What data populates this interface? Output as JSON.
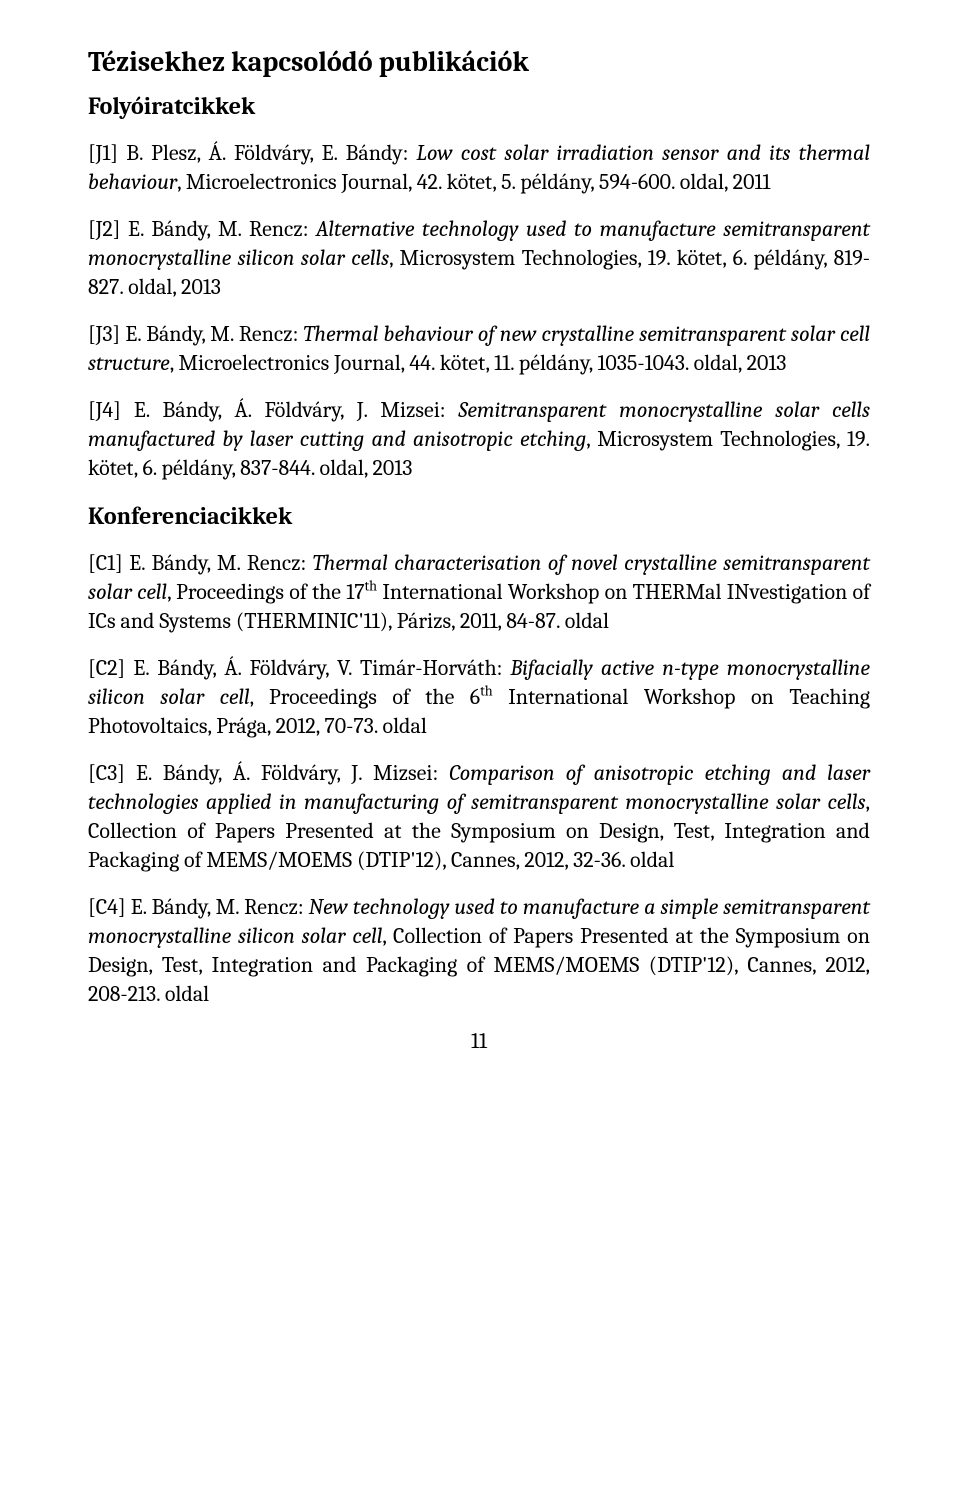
{
  "title": "Tézisekhez kapcsolódó publikációk",
  "section_journal_title": "Folyóiratcikkek",
  "section_conference_title": "Konferenciacikkek",
  "page_number": "11",
  "j1": {
    "pre": "[J1] B. Plesz, Á. Földváry, E. Bándy: ",
    "italic": "Low cost solar irradiation sensor and its thermal behaviour",
    "post": ", Microelectronics Journal, 42. kötet, 5. példány, 594-600. oldal, 2011"
  },
  "j2": {
    "pre": "[J2] E. Bándy, M. Rencz: ",
    "italic": "Alternative technology used to manufacture semitransparent monocrystalline silicon solar cells",
    "post": ", Microsystem Technologies, 19. kötet, 6. példány, 819-827. oldal, 2013"
  },
  "j3": {
    "pre": "[J3] E. Bándy, M. Rencz: ",
    "italic": "Thermal behaviour of new crystalline semitransparent solar cell structure",
    "post": ", Microelectronics Journal, 44. kötet, 11. példány, 1035-1043. oldal, 2013"
  },
  "j4": {
    "pre": "[J4] E. Bándy, Á. Földváry, J. Mizsei: ",
    "italic": "Semitransparent monocrystalline solar cells manufactured by laser cutting and anisotropic etching",
    "post": ", Microsystem Technologies, 19. kötet, 6. példány, 837-844. oldal, 2013"
  },
  "c1": {
    "pre": "[C1] E. Bándy, M. Rencz: ",
    "italic": "Thermal characterisation of novel crystalline semitransparent solar cell",
    "post1": ", Proceedings of the 17",
    "sup1": "th",
    "post2": " International Workshop on THERMal INvestigation of ICs and Systems (THERMINIC'11), Párizs, 2011, 84-87. oldal"
  },
  "c2": {
    "pre": "[C2] E. Bándy, Á. Földváry, V. Timár-Horváth: ",
    "italic": "Bifacially active n-type monocrystalline silicon solar cell",
    "post1": ", Proceedings of the 6",
    "sup1": "th",
    "post2": " International Workshop on Teaching Photovoltaics, Prága, 2012, 70-73. oldal"
  },
  "c3": {
    "pre": "[C3] E. Bándy, Á. Földváry, J. Mizsei: ",
    "italic": "Comparison of anisotropic etching and laser technologies applied in manufacturing of semitransparent monocrystalline solar cells",
    "post": ", Collection of Papers Presented at the Symposium on Design, Test, Integration and Packaging of MEMS/MOEMS (DTIP'12), Cannes, 2012, 32-36. oldal"
  },
  "c4": {
    "pre": "[C4] E. Bándy, M. Rencz: ",
    "italic": "New technology used to manufacture a simple semitransparent monocrystalline silicon solar cell",
    "post": ", Collection of Papers Presented at the Symposium on Design, Test, Integration and Packaging of MEMS/MOEMS (DTIP'12), Cannes, 2012, 208-213. oldal"
  }
}
